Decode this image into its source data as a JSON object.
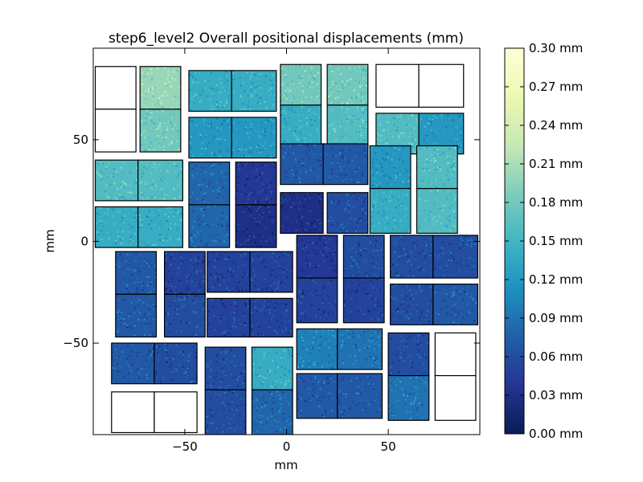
{
  "chart_data": {
    "type": "heatmap",
    "title": "step6_level2 Overall positional displacements (mm)",
    "xlabel": "mm",
    "ylabel": "mm",
    "xlim": [
      -95,
      95
    ],
    "ylim": [
      -95,
      95
    ],
    "x_ticks": [
      -50,
      0,
      50
    ],
    "y_ticks": [
      -50,
      0,
      50
    ],
    "x_tick_labels": [
      "−50",
      "0",
      "50"
    ],
    "y_tick_labels": [
      "−50",
      "0",
      "50"
    ],
    "grid": false,
    "colormap": "YlGnBu_r",
    "colorbar": {
      "range": [
        0.0,
        0.3
      ],
      "unit": "mm",
      "ticks": [
        0.0,
        0.03,
        0.06,
        0.09,
        0.12,
        0.15,
        0.18,
        0.21,
        0.24,
        0.27,
        0.3
      ],
      "tick_labels": [
        "0.00 mm",
        "0.03 mm",
        "0.06 mm",
        "0.09 mm",
        "0.12 mm",
        "0.15 mm",
        "0.18 mm",
        "0.21 mm",
        "0.24 mm",
        "0.27 mm",
        "0.30 mm"
      ],
      "colors": [
        "#081d58",
        "#253494",
        "#225ea8",
        "#1d91c0",
        "#41b6c4",
        "#7fcdbb",
        "#c7e9b4",
        "#edf8b1",
        "#ffffd9"
      ]
    },
    "tiles": [
      {
        "x0": -94,
        "x1": -74,
        "y0": 65,
        "y1": 86,
        "mean": null
      },
      {
        "x0": -94,
        "x1": -74,
        "y0": 44,
        "y1": 65,
        "mean": null
      },
      {
        "x0": -72,
        "x1": -52,
        "y0": 65,
        "y1": 86,
        "mean": 0.2
      },
      {
        "x0": -72,
        "x1": -52,
        "y0": 44,
        "y1": 65,
        "mean": 0.18
      },
      {
        "x0": -48,
        "x1": -27,
        "y0": 64,
        "y1": 84,
        "mean": 0.14
      },
      {
        "x0": -27,
        "x1": -5,
        "y0": 64,
        "y1": 84,
        "mean": 0.14
      },
      {
        "x0": -48,
        "x1": -27,
        "y0": 41,
        "y1": 61,
        "mean": 0.12
      },
      {
        "x0": -27,
        "x1": -5,
        "y0": 41,
        "y1": 61,
        "mean": 0.12
      },
      {
        "x0": -3,
        "x1": 17,
        "y0": 67,
        "y1": 87,
        "mean": 0.18
      },
      {
        "x0": -3,
        "x1": 17,
        "y0": 46,
        "y1": 67,
        "mean": 0.14
      },
      {
        "x0": 20,
        "x1": 40,
        "y0": 67,
        "y1": 87,
        "mean": 0.18
      },
      {
        "x0": 20,
        "x1": 40,
        "y0": 46,
        "y1": 67,
        "mean": 0.16
      },
      {
        "x0": 44,
        "x1": 65,
        "y0": 66,
        "y1": 87,
        "mean": null
      },
      {
        "x0": 65,
        "x1": 87,
        "y0": 66,
        "y1": 87,
        "mean": null
      },
      {
        "x0": 44,
        "x1": 65,
        "y0": 43,
        "y1": 63,
        "mean": 0.16
      },
      {
        "x0": 65,
        "x1": 87,
        "y0": 43,
        "y1": 63,
        "mean": 0.12
      },
      {
        "x0": -94,
        "x1": -73,
        "y0": 20,
        "y1": 40,
        "mean": 0.16
      },
      {
        "x0": -73,
        "x1": -51,
        "y0": 20,
        "y1": 40,
        "mean": 0.16
      },
      {
        "x0": -94,
        "x1": -73,
        "y0": -3,
        "y1": 17,
        "mean": 0.14
      },
      {
        "x0": -73,
        "x1": -51,
        "y0": -3,
        "y1": 17,
        "mean": 0.14
      },
      {
        "x0": -48,
        "x1": -28,
        "y0": 18,
        "y1": 39,
        "mean": 0.08
      },
      {
        "x0": -48,
        "x1": -28,
        "y0": -3,
        "y1": 18,
        "mean": 0.08
      },
      {
        "x0": -25,
        "x1": -5,
        "y0": 18,
        "y1": 39,
        "mean": 0.04
      },
      {
        "x0": -25,
        "x1": -5,
        "y0": -3,
        "y1": 18,
        "mean": 0.03
      },
      {
        "x0": -3,
        "x1": 18,
        "y0": 28,
        "y1": 48,
        "mean": 0.07
      },
      {
        "x0": 18,
        "x1": 40,
        "y0": 28,
        "y1": 48,
        "mean": 0.07
      },
      {
        "x0": -3,
        "x1": 18,
        "y0": 4,
        "y1": 24,
        "mean": 0.03
      },
      {
        "x0": 20,
        "x1": 40,
        "y0": 4,
        "y1": 24,
        "mean": 0.06
      },
      {
        "x0": 41,
        "x1": 61,
        "y0": 26,
        "y1": 47,
        "mean": 0.12
      },
      {
        "x0": 41,
        "x1": 61,
        "y0": 4,
        "y1": 26,
        "mean": 0.14
      },
      {
        "x0": 64,
        "x1": 84,
        "y0": 26,
        "y1": 47,
        "mean": 0.16
      },
      {
        "x0": 64,
        "x1": 84,
        "y0": 4,
        "y1": 26,
        "mean": 0.16
      },
      {
        "x0": -84,
        "x1": -64,
        "y0": -26,
        "y1": -5,
        "mean": 0.07
      },
      {
        "x0": -84,
        "x1": -64,
        "y0": -47,
        "y1": -26,
        "mean": 0.07
      },
      {
        "x0": -60,
        "x1": -40,
        "y0": -26,
        "y1": -5,
        "mean": 0.05
      },
      {
        "x0": -60,
        "x1": -40,
        "y0": -47,
        "y1": -26,
        "mean": 0.06
      },
      {
        "x0": -39,
        "x1": -18,
        "y0": -25,
        "y1": -5,
        "mean": 0.05
      },
      {
        "x0": -18,
        "x1": 3,
        "y0": -25,
        "y1": -5,
        "mean": 0.05
      },
      {
        "x0": -39,
        "x1": -18,
        "y0": -47,
        "y1": -28,
        "mean": 0.05
      },
      {
        "x0": -18,
        "x1": 3,
        "y0": -47,
        "y1": -28,
        "mean": 0.05
      },
      {
        "x0": 5,
        "x1": 25,
        "y0": -18,
        "y1": 3,
        "mean": 0.04
      },
      {
        "x0": 5,
        "x1": 25,
        "y0": -40,
        "y1": -18,
        "mean": 0.05
      },
      {
        "x0": 28,
        "x1": 48,
        "y0": -18,
        "y1": 3,
        "mean": 0.06
      },
      {
        "x0": 28,
        "x1": 48,
        "y0": -40,
        "y1": -18,
        "mean": 0.05
      },
      {
        "x0": 51,
        "x1": 72,
        "y0": -18,
        "y1": 3,
        "mean": 0.06
      },
      {
        "x0": 72,
        "x1": 94,
        "y0": -18,
        "y1": 3,
        "mean": 0.06
      },
      {
        "x0": 51,
        "x1": 72,
        "y0": -41,
        "y1": -21,
        "mean": 0.06
      },
      {
        "x0": 72,
        "x1": 94,
        "y0": -41,
        "y1": -21,
        "mean": 0.07
      },
      {
        "x0": -86,
        "x1": -65,
        "y0": -70,
        "y1": -50,
        "mean": 0.07
      },
      {
        "x0": -65,
        "x1": -44,
        "y0": -70,
        "y1": -50,
        "mean": 0.06
      },
      {
        "x0": -86,
        "x1": -65,
        "y0": -94,
        "y1": -74,
        "mean": null
      },
      {
        "x0": -65,
        "x1": -44,
        "y0": -94,
        "y1": -74,
        "mean": null
      },
      {
        "x0": -40,
        "x1": -20,
        "y0": -73,
        "y1": -52,
        "mean": 0.06
      },
      {
        "x0": -40,
        "x1": -20,
        "y0": -95,
        "y1": -73,
        "mean": 0.06
      },
      {
        "x0": -17,
        "x1": 3,
        "y0": -73,
        "y1": -52,
        "mean": 0.14
      },
      {
        "x0": -17,
        "x1": 3,
        "y0": -95,
        "y1": -73,
        "mean": 0.08
      },
      {
        "x0": 5,
        "x1": 25,
        "y0": -63,
        "y1": -43,
        "mean": 0.1
      },
      {
        "x0": 25,
        "x1": 47,
        "y0": -63,
        "y1": -43,
        "mean": 0.09
      },
      {
        "x0": 5,
        "x1": 25,
        "y0": -87,
        "y1": -65,
        "mean": 0.07
      },
      {
        "x0": 25,
        "x1": 47,
        "y0": -87,
        "y1": -65,
        "mean": 0.07
      },
      {
        "x0": 50,
        "x1": 70,
        "y0": -66,
        "y1": -45,
        "mean": 0.06
      },
      {
        "x0": 50,
        "x1": 70,
        "y0": -88,
        "y1": -66,
        "mean": 0.09
      },
      {
        "x0": 73,
        "x1": 93,
        "y0": -66,
        "y1": -45,
        "mean": null
      },
      {
        "x0": 73,
        "x1": 93,
        "y0": -88,
        "y1": -66,
        "mean": null
      }
    ]
  }
}
